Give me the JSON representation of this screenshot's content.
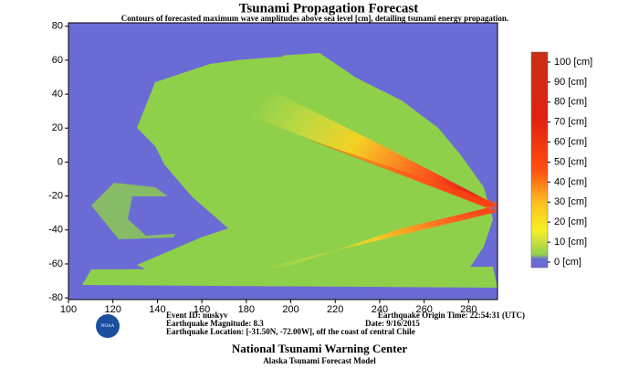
{
  "header": {
    "title": "Tsunami Propagation Forecast",
    "subtitle": "Contours of forecasted maximum wave amplitudes above sea level [cm], detailing tsunami energy propagation."
  },
  "map": {
    "xlim": [
      100,
      293
    ],
    "ylim": [
      -81,
      82
    ],
    "xticks": [
      100,
      120,
      140,
      160,
      180,
      200,
      220,
      240,
      260,
      280
    ],
    "yticks": [
      -80,
      -60,
      -40,
      -20,
      0,
      20,
      40,
      60,
      80
    ]
  },
  "colorbar": {
    "lim": [
      0,
      105
    ],
    "ticks": [
      {
        "value": 100,
        "label": "100 [cm]"
      },
      {
        "value": 90,
        "label": "90 [cm]"
      },
      {
        "value": 80,
        "label": "80 [cm]"
      },
      {
        "value": 70,
        "label": "70 [cm]"
      },
      {
        "value": 60,
        "label": "60 [cm]"
      },
      {
        "value": 50,
        "label": "50 [cm]"
      },
      {
        "value": 40,
        "label": "40 [cm]"
      },
      {
        "value": 30,
        "label": "30 [cm]"
      },
      {
        "value": 20,
        "label": "20 [cm]"
      },
      {
        "value": 10,
        "label": "10 [cm]"
      },
      {
        "value": 0,
        "label": "0 [cm]"
      }
    ]
  },
  "info": {
    "event_id": "Event ID: nuskyv",
    "origin_time": "Earthquake Origin Time: 22:54:31 (UTC)",
    "magnitude": "Earthquake Magnitude: 8.3",
    "date": "Date: 9/16/2015",
    "location": "Earthquake Location: [-31.50N, -72.00W], off the coast of central Chile"
  },
  "logo": "NOAA",
  "footer": {
    "title": "National Tsunami Warning Center",
    "subtitle": "Alaska Tsunami Forecast Model"
  }
}
